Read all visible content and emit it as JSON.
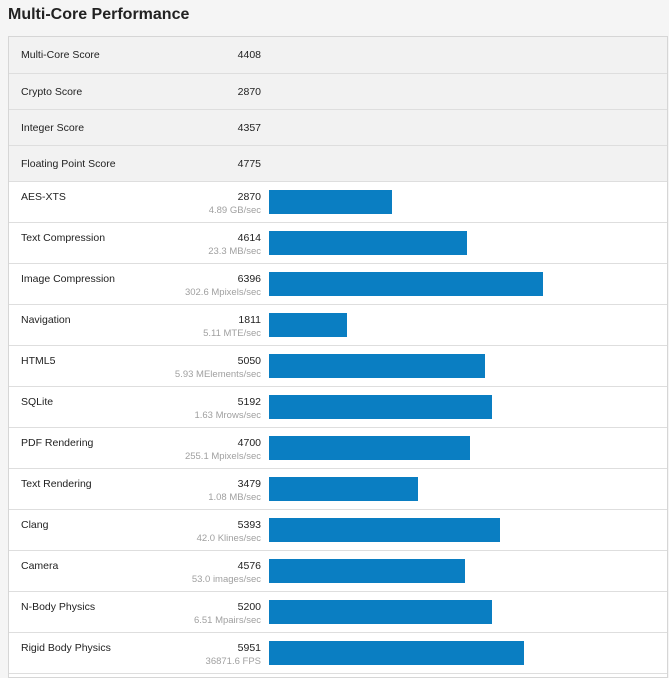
{
  "title": "Multi-Core Performance",
  "colors": {
    "bar": "#0a7ec2"
  },
  "bar_scale_max": 7000,
  "summary": [
    {
      "label": "Multi-Core Score",
      "score": "4408"
    },
    {
      "label": "Crypto Score",
      "score": "2870"
    },
    {
      "label": "Integer Score",
      "score": "4357"
    },
    {
      "label": "Floating Point Score",
      "score": "4775"
    }
  ],
  "benchmarks": [
    {
      "label": "AES-XTS",
      "score": "2870",
      "rate": "4.89 GB/sec",
      "value": 2870
    },
    {
      "label": "Text Compression",
      "score": "4614",
      "rate": "23.3 MB/sec",
      "value": 4614
    },
    {
      "label": "Image Compression",
      "score": "6396",
      "rate": "302.6 Mpixels/sec",
      "value": 6396
    },
    {
      "label": "Navigation",
      "score": "1811",
      "rate": "5.11 MTE/sec",
      "value": 1811
    },
    {
      "label": "HTML5",
      "score": "5050",
      "rate": "5.93 MElements/sec",
      "value": 5050
    },
    {
      "label": "SQLite",
      "score": "5192",
      "rate": "1.63 Mrows/sec",
      "value": 5192
    },
    {
      "label": "PDF Rendering",
      "score": "4700",
      "rate": "255.1 Mpixels/sec",
      "value": 4700
    },
    {
      "label": "Text Rendering",
      "score": "3479",
      "rate": "1.08 MB/sec",
      "value": 3479
    },
    {
      "label": "Clang",
      "score": "5393",
      "rate": "42.0 Klines/sec",
      "value": 5393
    },
    {
      "label": "Camera",
      "score": "4576",
      "rate": "53.0 images/sec",
      "value": 4576
    },
    {
      "label": "N-Body Physics",
      "score": "5200",
      "rate": "6.51 Mpairs/sec",
      "value": 5200
    },
    {
      "label": "Rigid Body Physics",
      "score": "5951",
      "rate": "36871.6 FPS",
      "value": 5951
    }
  ]
}
